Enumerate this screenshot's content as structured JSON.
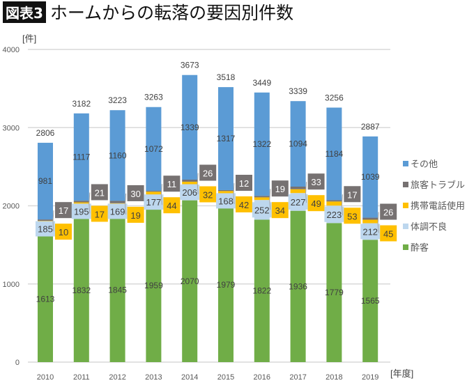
{
  "chart_data": {
    "type": "bar",
    "stacked": true,
    "title_badge": "図表3",
    "title": "ホームからの転落の要因別件数",
    "ylabel": "[件]",
    "xlabel": "[年度]",
    "ylim": [
      0,
      4000
    ],
    "yticks": [
      0,
      1000,
      2000,
      3000,
      4000
    ],
    "grid": true,
    "legend_position": "right",
    "categories": [
      "2010",
      "2011",
      "2012",
      "2013",
      "2014",
      "2015",
      "2016",
      "2017",
      "2018",
      "2019"
    ],
    "series": [
      {
        "name": "酔客",
        "color": "#70ad47",
        "values": [
          1613,
          1832,
          1845,
          1959,
          2070,
          1979,
          1822,
          1936,
          1779,
          1565
        ]
      },
      {
        "name": "体調不良",
        "color": "#bdd7ee",
        "values": [
          185,
          195,
          169,
          177,
          206,
          168,
          252,
          227,
          223,
          212
        ]
      },
      {
        "name": "携帯電話使用",
        "color": "#ffc000",
        "values": [
          10,
          17,
          19,
          44,
          32,
          42,
          34,
          49,
          53,
          45
        ]
      },
      {
        "name": "旅客トラブル",
        "color": "#767171",
        "values": [
          17,
          21,
          30,
          11,
          26,
          12,
          19,
          33,
          17,
          26
        ]
      },
      {
        "name": "その他",
        "color": "#5b9bd5",
        "values": [
          981,
          1117,
          1160,
          1072,
          1339,
          1317,
          1322,
          1094,
          1184,
          1039
        ]
      }
    ],
    "totals": [
      2806,
      3182,
      3223,
      3263,
      3673,
      3518,
      3449,
      3339,
      3256,
      2887
    ]
  }
}
